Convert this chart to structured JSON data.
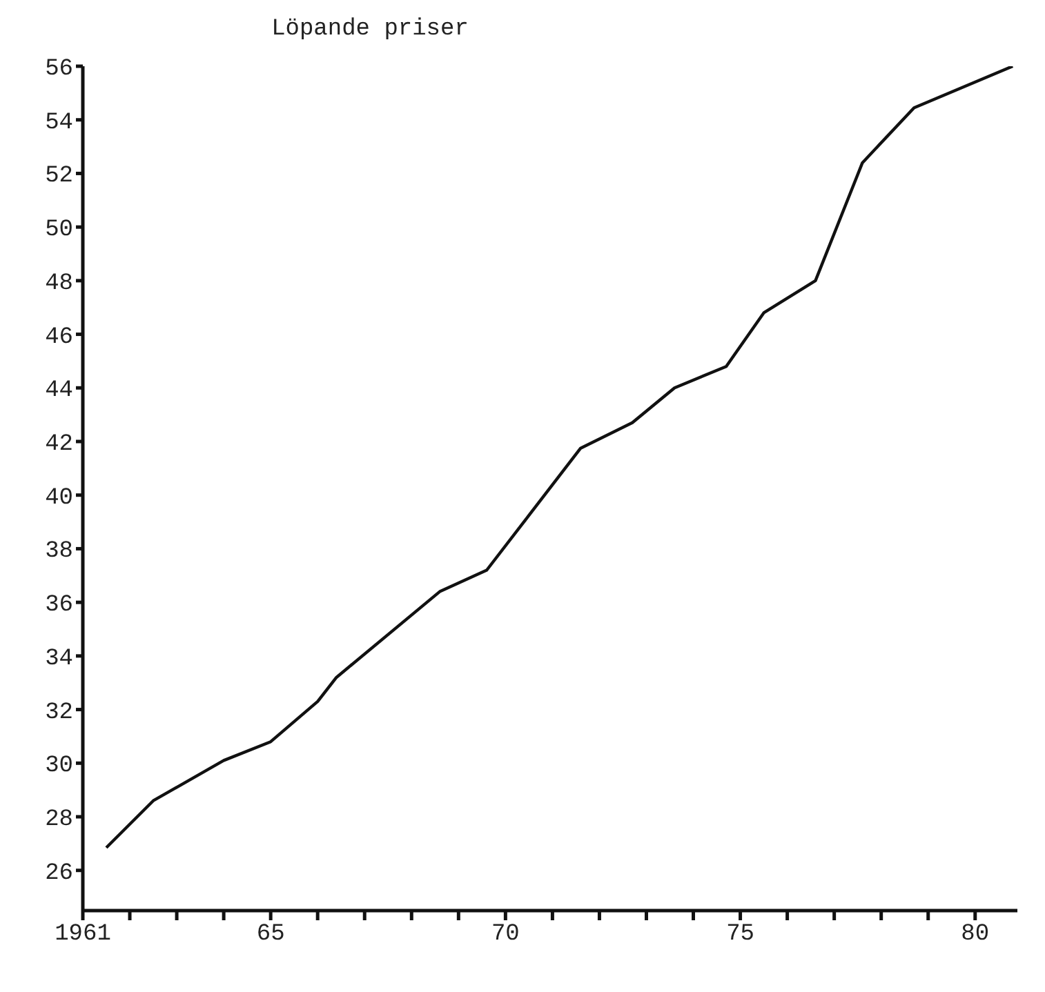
{
  "chart_data": {
    "type": "line",
    "title": "Löpande priser",
    "x": [
      1961.5,
      1962.5,
      1964.0,
      1965.0,
      1966.0,
      1966.4,
      1968.6,
      1969.6,
      1971.6,
      1972.7,
      1973.6,
      1974.7,
      1975.5,
      1976.6,
      1977.6,
      1978.7,
      1980.8
    ],
    "series": [
      {
        "color": "#111111",
        "values": [
          26.85,
          28.6,
          30.1,
          30.8,
          32.3,
          33.2,
          36.4,
          37.2,
          41.75,
          42.7,
          44.0,
          44.8,
          46.8,
          48.0,
          52.4,
          54.45,
          56.0
        ]
      }
    ],
    "xlim": [
      1961,
      1980.9
    ],
    "xticks": [
      {
        "value": 1961,
        "label": "1961"
      },
      {
        "value": 1962,
        "label": null
      },
      {
        "value": 1963,
        "label": null
      },
      {
        "value": 1964,
        "label": null
      },
      {
        "value": 1965,
        "label": "65"
      },
      {
        "value": 1966,
        "label": null
      },
      {
        "value": 1967,
        "label": null
      },
      {
        "value": 1968,
        "label": null
      },
      {
        "value": 1969,
        "label": null
      },
      {
        "value": 1970,
        "label": "70"
      },
      {
        "value": 1971,
        "label": null
      },
      {
        "value": 1972,
        "label": null
      },
      {
        "value": 1973,
        "label": null
      },
      {
        "value": 1974,
        "label": null
      },
      {
        "value": 1975,
        "label": "75"
      },
      {
        "value": 1976,
        "label": null
      },
      {
        "value": 1977,
        "label": null
      },
      {
        "value": 1978,
        "label": null
      },
      {
        "value": 1979,
        "label": null
      },
      {
        "value": 1980,
        "label": "80"
      }
    ],
    "ylim": [
      24.5,
      56
    ],
    "yticks": [
      26,
      28,
      30,
      32,
      34,
      36,
      38,
      40,
      42,
      44,
      46,
      48,
      50,
      52,
      54,
      56
    ],
    "grid": false,
    "legend": false,
    "marker": "none",
    "line_style": "solid"
  }
}
